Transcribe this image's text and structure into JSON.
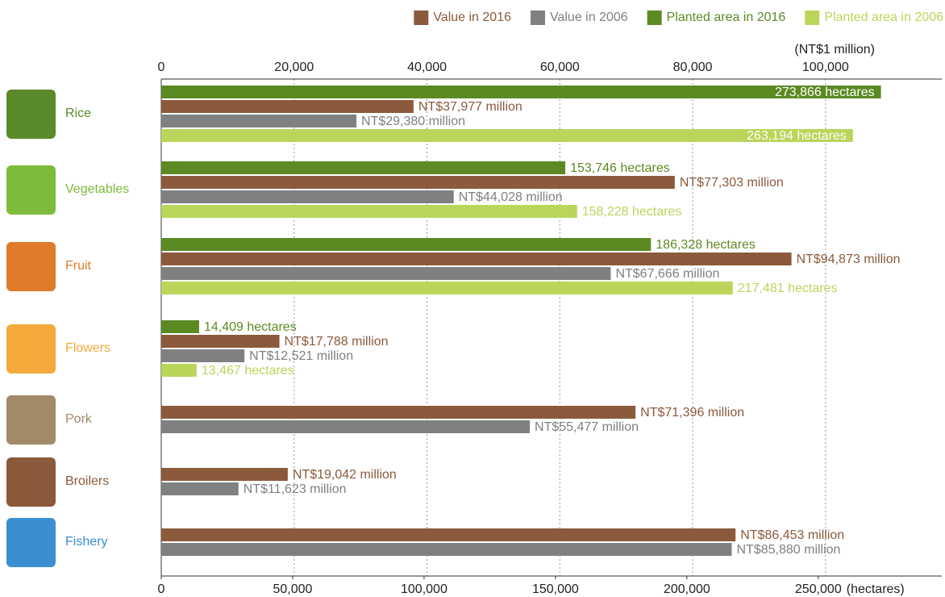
{
  "chart_data": {
    "type": "bar",
    "orientation": "horizontal",
    "categories": [
      "Rice",
      "Vegetables",
      "Fruit",
      "Flowers",
      "Pork",
      "Broilers",
      "Fishery"
    ],
    "category_colors": [
      "#5b8a2a",
      "#7dbb3a",
      "#e07b2a",
      "#f5a93b",
      "#a08a68",
      "#8a5a3a",
      "#3b8ed0"
    ],
    "xlabel": "(NT$1 million)",
    "x2label": "(hectares)",
    "xlim": [
      0,
      117500
    ],
    "xticks": [
      0,
      {
        "value": 20000,
        "label": "20,000"
      },
      {
        "value": 40000,
        "label": "40,000"
      },
      {
        "value": 60000,
        "label": "60,000"
      },
      {
        "value": 80000,
        "label": "80,000"
      },
      {
        "value": 100000,
        "label": "100,000"
      }
    ],
    "x2lim": [
      0,
      297000
    ],
    "x2ticks": [
      0,
      {
        "value": 50000,
        "label": "50,000"
      },
      {
        "value": 100000,
        "label": "100,000"
      },
      {
        "value": 150000,
        "label": "150,000"
      },
      {
        "value": 200000,
        "label": "200,000"
      },
      {
        "value": 250000,
        "label": "250,000"
      }
    ],
    "grid": true,
    "legend": "top-right",
    "series": [
      {
        "name": "Value in 2016",
        "color": "#8b5a3c",
        "axis": "x",
        "values": [
          37977,
          77303,
          94873,
          17788,
          71396,
          19042,
          86453
        ],
        "value_labels": [
          "NT$37,977 million",
          "NT$77,303 million",
          "NT$94,873 million",
          "NT$17,788 million",
          "NT$71,396 million",
          "NT$19,042 million",
          "NT$86,453 million"
        ]
      },
      {
        "name": "Value in 2006",
        "color": "#808083",
        "axis": "x",
        "values": [
          29380,
          44028,
          67666,
          12521,
          55477,
          11623,
          85880
        ],
        "value_labels": [
          "NT$29,380 million",
          "NT$44,028 million",
          "NT$67,666 million",
          "NT$12,521 million",
          "NT$55,477 million",
          "NT$11,623 million",
          "NT$85,880 million"
        ]
      },
      {
        "name": "Planted area in 2016",
        "color": "#5b8a23",
        "axis": "x2",
        "values": [
          273866,
          153746,
          186328,
          14409,
          null,
          null,
          null
        ],
        "value_labels": [
          "273,866 hectares",
          "153,746 hectares",
          "186,328 hectares",
          "14,409 hectares",
          null,
          null,
          null
        ]
      },
      {
        "name": "Planted area in 2006",
        "color": "#b9d65a",
        "axis": "x2",
        "values": [
          263194,
          158228,
          217481,
          13467,
          null,
          null,
          null
        ],
        "value_labels": [
          "263,194 hectares",
          "158,228 hectares",
          "217,481 hectares",
          "13,467 hectares",
          null,
          null,
          null
        ]
      }
    ]
  }
}
